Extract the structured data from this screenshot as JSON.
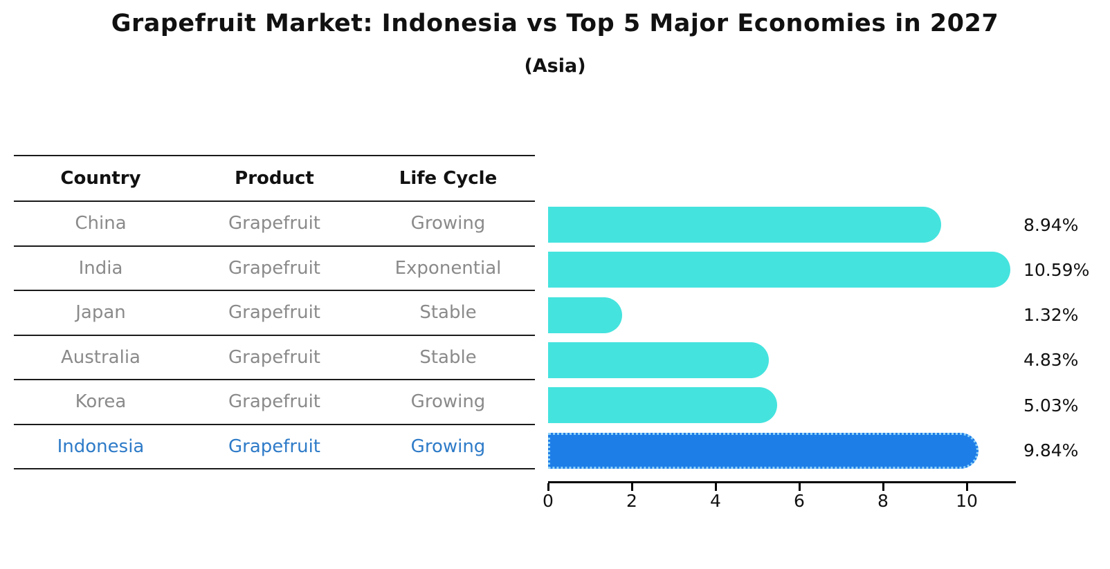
{
  "title": "Grapefruit Market: Indonesia vs Top 5 Major Economies in 2027",
  "subtitle": "(Asia)",
  "colors": {
    "bar_default": "#45e3de",
    "bar_highlight": "#1e7ee8",
    "highlight_dot_border": "#8fd2f8",
    "highlight_text": "#2e7bc8",
    "row_text": "#8a8a8a",
    "header_text": "#111111",
    "axis": "#000000",
    "background": "#ffffff"
  },
  "table": {
    "headers": [
      "Country",
      "Product",
      "Life Cycle"
    ],
    "rows": [
      {
        "country": "China",
        "product": "Grapefruit",
        "life_cycle": "Growing",
        "highlighted": false
      },
      {
        "country": "India",
        "product": "Grapefruit",
        "life_cycle": "Exponential",
        "highlighted": false
      },
      {
        "country": "Japan",
        "product": "Grapefruit",
        "life_cycle": "Stable",
        "highlighted": false
      },
      {
        "country": "Australia",
        "product": "Grapefruit",
        "life_cycle": "Stable",
        "highlighted": false
      },
      {
        "country": "Korea",
        "product": "Grapefruit",
        "life_cycle": "Growing",
        "highlighted": false
      },
      {
        "country": "Indonesia",
        "product": "Grapefruit",
        "life_cycle": "Growing",
        "highlighted": true
      }
    ]
  },
  "chart_data": {
    "type": "bar",
    "orientation": "horizontal",
    "title": "Grapefruit Market: Indonesia vs Top 5 Major Economies in 2027 (Asia)",
    "xlabel": "",
    "ylabel": "",
    "categories": [
      "China",
      "India",
      "Japan",
      "Australia",
      "Korea",
      "Indonesia"
    ],
    "values": [
      8.94,
      10.59,
      1.32,
      4.83,
      5.03,
      9.84
    ],
    "value_labels": [
      "8.94%",
      "10.59%",
      "1.32%",
      "4.83%",
      "5.03%",
      "9.84%"
    ],
    "highlight_index": 5,
    "xticks": [
      0,
      2,
      4,
      6,
      8,
      10
    ],
    "xlim": [
      0,
      11.15
    ],
    "grid": false,
    "legend": "none"
  }
}
